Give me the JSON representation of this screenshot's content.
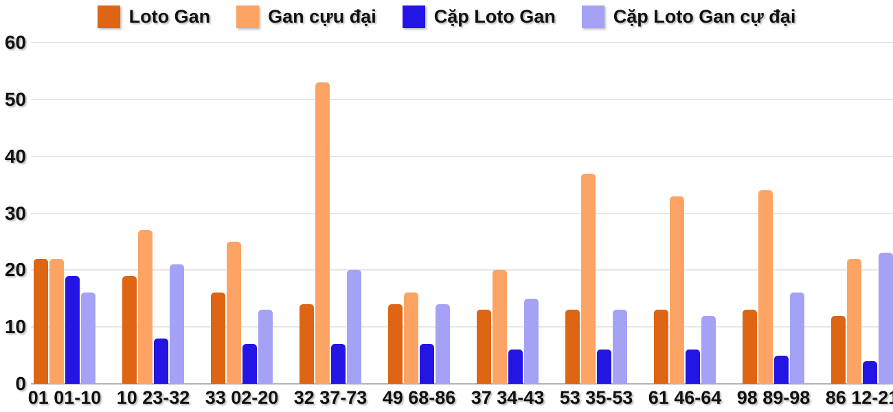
{
  "chart_data": {
    "type": "bar",
    "title": "",
    "xlabel": "",
    "ylabel": "",
    "ylim": [
      0,
      60
    ],
    "yticks": [
      0,
      10,
      20,
      30,
      40,
      50,
      60
    ],
    "grid": "horizontal",
    "legend_position": "top-center",
    "categories": [
      "01 01-10",
      "10 23-32",
      "33 02-20",
      "32 37-73",
      "49 68-86",
      "37 34-43",
      "53 35-53",
      "61 46-64",
      "98 89-98",
      "86 12-21"
    ],
    "series": [
      {
        "name": "Loto Gan",
        "color": "#dd6513",
        "values": [
          22,
          19,
          16,
          14,
          14,
          13,
          13,
          13,
          13,
          12
        ]
      },
      {
        "name": "Gan cựu đại",
        "color": "#fda465",
        "values": [
          22,
          27,
          25,
          53,
          16,
          20,
          37,
          33,
          34,
          22
        ]
      },
      {
        "name": "Cặp Loto Gan",
        "color": "#2315e3",
        "values": [
          19,
          8,
          7,
          7,
          7,
          6,
          6,
          6,
          5,
          4
        ]
      },
      {
        "name": "Cặp Loto Gan cự đại",
        "color": "#a5a2f6",
        "values": [
          16,
          21,
          13,
          20,
          14,
          15,
          13,
          12,
          16,
          23
        ]
      }
    ],
    "colors": {
      "text": "#111111",
      "gridline": "#e6e6e6",
      "axis_line": "#b3b3b3",
      "background": "#ffffff"
    }
  }
}
